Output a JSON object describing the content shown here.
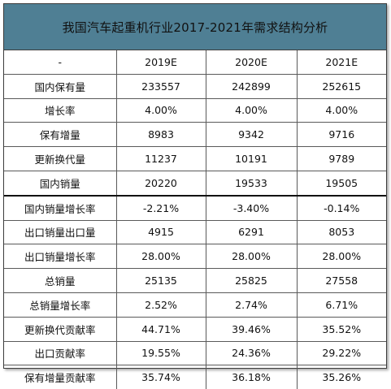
{
  "title": "我国汽车起重机行业2017-2021年需求结构分析",
  "headers": [
    "-",
    "2019E",
    "2020E",
    "2021E"
  ],
  "rows": [
    {
      "label": "国内保有量",
      "values": [
        "233557",
        "242899",
        "252615"
      ]
    },
    {
      "label": "增长率",
      "values": [
        "4.00%",
        "4.00%",
        "4.00%"
      ]
    },
    {
      "label": "保有增量",
      "values": [
        "8983",
        "9342",
        "9716"
      ]
    },
    {
      "label": "更新换代量",
      "values": [
        "11237",
        "10191",
        "9789"
      ]
    },
    {
      "label": "国内销量",
      "values": [
        "20220",
        "19533",
        "19505"
      ]
    },
    {
      "label": "国内销量增长率",
      "values": [
        "-2.21%",
        "-3.40%",
        "-0.14%"
      ]
    },
    {
      "label": "出口销量出口量",
      "values": [
        "4915",
        "6291",
        "8053"
      ]
    },
    {
      "label": "出口销量增长率",
      "values": [
        "28.00%",
        "28.00%",
        "28.00%"
      ]
    },
    {
      "label": "总销量",
      "values": [
        "25135",
        "25825",
        "27558"
      ]
    },
    {
      "label": "总销量增长率",
      "values": [
        "2.52%",
        "2.74%",
        "6.71%"
      ]
    },
    {
      "label": "更新换代贡献率",
      "values": [
        "44.71%",
        "39.46%",
        "35.52%"
      ]
    },
    {
      "label": "出口贡献率",
      "values": [
        "19.55%",
        "24.36%",
        "29.22%"
      ]
    },
    {
      "label": "保有增量贡献率",
      "values": [
        "35.74%",
        "36.18%",
        "35.26%"
      ]
    }
  ],
  "chart_data": {
    "type": "table",
    "title": "我国汽车起重机行业2017-2021年需求结构分析",
    "columns": [
      "-",
      "2019E",
      "2020E",
      "2021E"
    ],
    "rows": [
      [
        "国内保有量",
        "233557",
        "242899",
        "252615"
      ],
      [
        "增长率",
        "4.00%",
        "4.00%",
        "4.00%"
      ],
      [
        "保有增量",
        "8983",
        "9342",
        "9716"
      ],
      [
        "更新换代量",
        "11237",
        "10191",
        "9789"
      ],
      [
        "国内销量",
        "20220",
        "19533",
        "19505"
      ],
      [
        "国内销量增长率",
        "-2.21%",
        "-3.40%",
        "-0.14%"
      ],
      [
        "出口销量出口量",
        "4915",
        "6291",
        "8053"
      ],
      [
        "出口销量增长率",
        "28.00%",
        "28.00%",
        "28.00%"
      ],
      [
        "总销量",
        "25135",
        "25825",
        "27558"
      ],
      [
        "总销量增长率",
        "2.52%",
        "2.74%",
        "6.71%"
      ],
      [
        "更新换代贡献率",
        "44.71%",
        "39.46%",
        "35.52%"
      ],
      [
        "出口贡献率",
        "19.55%",
        "24.36%",
        "29.22%"
      ],
      [
        "保有增量贡献率",
        "35.74%",
        "36.18%",
        "35.26%"
      ]
    ]
  },
  "colors": {
    "title_bg": "#4f7f94",
    "border": "#5a5a5a",
    "text": "#111111"
  }
}
